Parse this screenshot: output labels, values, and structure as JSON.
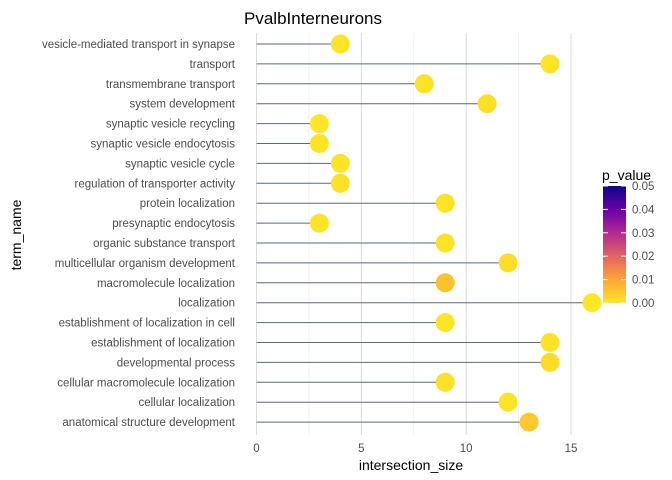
{
  "chart_data": {
    "type": "lollipop",
    "title": "PvalbInterneurons",
    "xlabel": "intersection_size",
    "ylabel": "term_name",
    "xlim": [
      0,
      16.8
    ],
    "xticks": [
      0,
      5,
      10,
      15
    ],
    "grid": true,
    "legend": {
      "title": "p_value",
      "placement": "right",
      "ticks": [
        "0.05",
        "0.04",
        "0.03",
        "0.02",
        "0.01",
        "0.00"
      ],
      "range": [
        0,
        0.05
      ],
      "colors": [
        "#FDE725",
        "#FCA636",
        "#E16462",
        "#B12A90",
        "#6A00A8",
        "#0D0887"
      ]
    },
    "stem_color": "#5A6B7A",
    "points": [
      {
        "term": "vesicle-mediated transport in synapse",
        "x": 4,
        "p": 0.0004
      },
      {
        "term": "transport",
        "x": 14,
        "p": 0.0003
      },
      {
        "term": "transmembrane transport",
        "x": 8,
        "p": 0.0008
      },
      {
        "term": "system development",
        "x": 11,
        "p": 0.0012
      },
      {
        "term": "synaptic vesicle recycling",
        "x": 3,
        "p": 0.0002
      },
      {
        "term": "synaptic vesicle endocytosis",
        "x": 3,
        "p": 0.0003
      },
      {
        "term": "synaptic vesicle cycle",
        "x": 4,
        "p": 0.0003
      },
      {
        "term": "regulation of transporter activity",
        "x": 4,
        "p": 0.0009
      },
      {
        "term": "protein localization",
        "x": 9,
        "p": 0.0006
      },
      {
        "term": "presynaptic endocytosis",
        "x": 3,
        "p": 0.0004
      },
      {
        "term": "organic substance transport",
        "x": 9,
        "p": 0.0007
      },
      {
        "term": "multicellular organism development",
        "x": 12,
        "p": 0.0014
      },
      {
        "term": "macromolecule localization",
        "x": 9,
        "p": 0.0055
      },
      {
        "term": "localization",
        "x": 16,
        "p": 0.0002
      },
      {
        "term": "establishment of localization in cell",
        "x": 9,
        "p": 0.0004
      },
      {
        "term": "establishment of localization",
        "x": 14,
        "p": 0.0006
      },
      {
        "term": "developmental process",
        "x": 14,
        "p": 0.0018
      },
      {
        "term": "cellular macromolecule localization",
        "x": 9,
        "p": 0.0011
      },
      {
        "term": "cellular localization",
        "x": 12,
        "p": 0.0005
      },
      {
        "term": "anatomical structure development",
        "x": 13,
        "p": 0.0045
      }
    ]
  }
}
